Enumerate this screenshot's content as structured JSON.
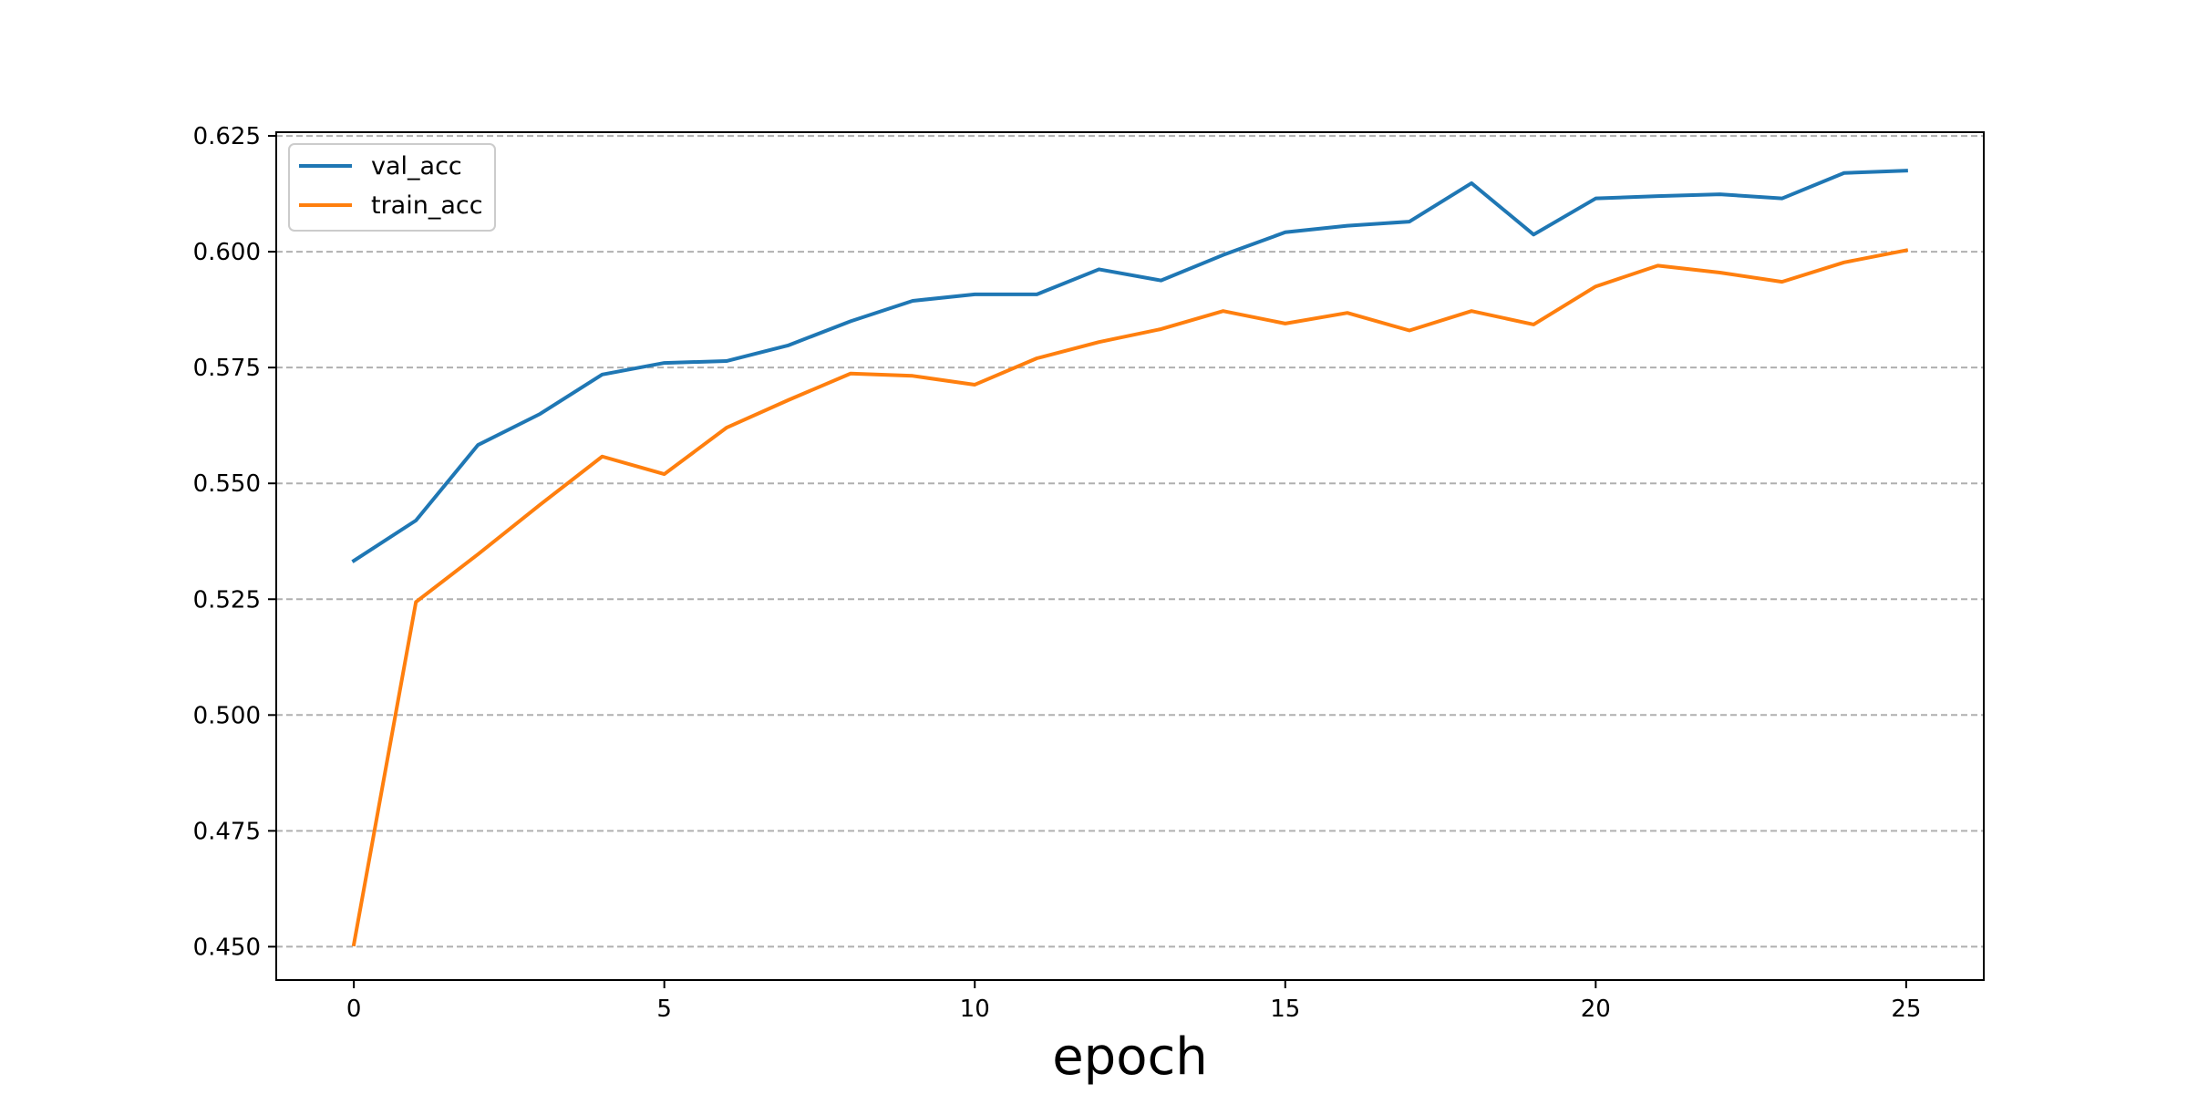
{
  "chart_data": {
    "type": "line",
    "title": "",
    "xlabel": "epoch",
    "ylabel": "",
    "xlim": [
      -1.25,
      26.25
    ],
    "ylim": [
      0.4428,
      0.6258
    ],
    "xticks": [
      0,
      5,
      10,
      15,
      20,
      25
    ],
    "yticks": [
      0.45,
      0.475,
      0.5,
      0.525,
      0.55,
      0.575,
      0.6,
      0.625
    ],
    "ytick_labels": [
      "0.450",
      "0.475",
      "0.500",
      "0.525",
      "0.550",
      "0.575",
      "0.600",
      "0.625"
    ],
    "grid": "y-dashed",
    "legend_position": "top-left",
    "x": [
      0,
      1,
      2,
      3,
      4,
      5,
      6,
      7,
      8,
      9,
      10,
      11,
      12,
      13,
      14,
      15,
      16,
      17,
      18,
      19,
      20,
      21,
      22,
      23,
      24,
      25
    ],
    "series": [
      {
        "name": "val_acc",
        "color": "#1f77b4",
        "values": [
          0.5333,
          0.542,
          0.5583,
          0.565,
          0.5735,
          0.576,
          0.5764,
          0.5798,
          0.585,
          0.5894,
          0.5908,
          0.5908,
          0.5962,
          0.5938,
          0.5993,
          0.6042,
          0.6056,
          0.6065,
          0.6148,
          0.6037,
          0.6115,
          0.612,
          0.6124,
          0.6115,
          0.617,
          0.6175
        ]
      },
      {
        "name": "train_acc",
        "color": "#ff7f0e",
        "values": [
          0.4505,
          0.5244,
          0.5347,
          0.5454,
          0.5558,
          0.552,
          0.562,
          0.568,
          0.5737,
          0.5732,
          0.5713,
          0.577,
          0.5805,
          0.5833,
          0.5872,
          0.5845,
          0.5868,
          0.583,
          0.5872,
          0.5843,
          0.5925,
          0.597,
          0.5955,
          0.5935,
          0.5977,
          0.6003
        ]
      }
    ]
  }
}
